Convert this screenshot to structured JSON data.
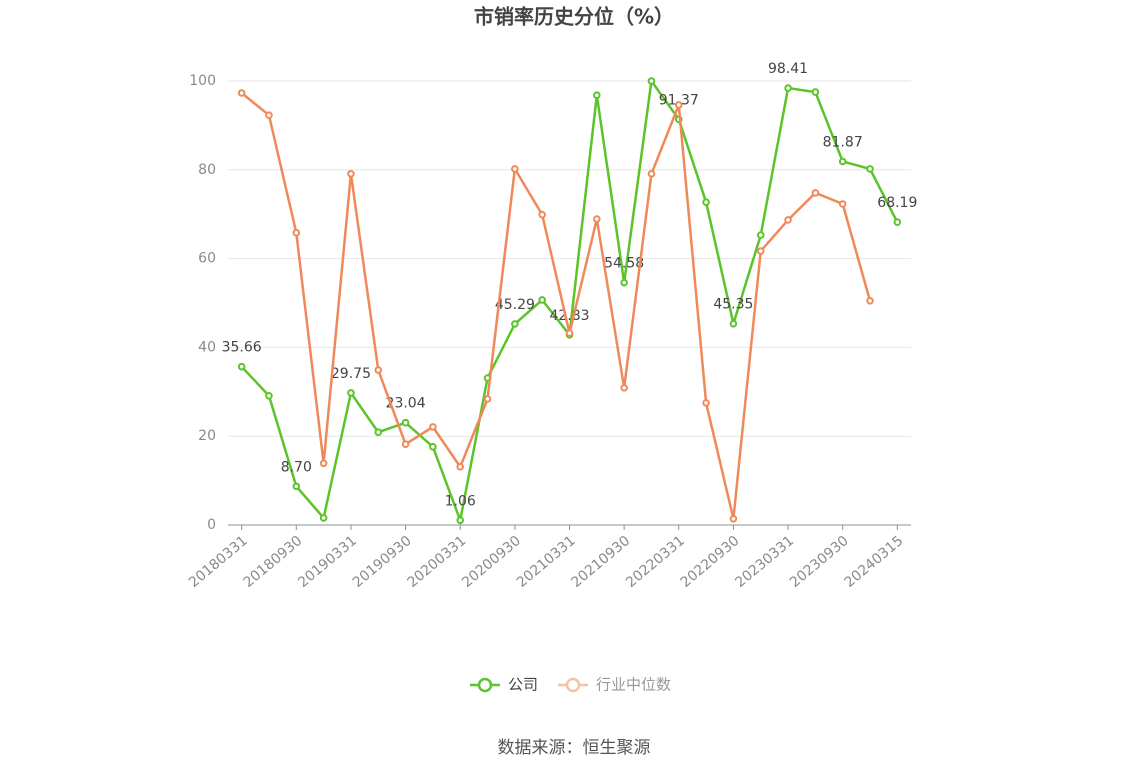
{
  "chart_data": {
    "type": "line",
    "title": "市销率历史分位（%）",
    "source": "数据来源：恒生聚源",
    "categories": [
      "20180331",
      null,
      "20180930",
      null,
      "20190331",
      null,
      "20190930",
      null,
      "20200331",
      null,
      "20200930",
      null,
      "20210331",
      null,
      "20210930",
      null,
      "20220331",
      null,
      "20220930",
      null,
      "20230331",
      null,
      "20230930",
      null,
      "20240315"
    ],
    "series": [
      {
        "name": "公司",
        "color": "#5ac42a",
        "values": [
          35.66,
          29.1,
          8.7,
          1.6,
          29.75,
          20.9,
          23.04,
          17.6,
          1.06,
          33.1,
          45.29,
          50.7,
          42.83,
          96.8,
          54.58,
          100,
          91.37,
          72.7,
          45.35,
          65.3,
          98.41,
          97.5,
          81.87,
          80.2,
          68.19
        ],
        "value_labels": [
          "35.66",
          null,
          "8.70",
          null,
          "29.75",
          null,
          "23.04",
          null,
          "1.06",
          null,
          "45.29",
          null,
          "42.83",
          null,
          "54.58",
          null,
          "91.37",
          null,
          "45.35",
          null,
          "98.41",
          null,
          "81.87",
          null,
          "68.19"
        ]
      },
      {
        "name": "行业中位数",
        "color": "#f0895a",
        "values": [
          97.3,
          92.3,
          65.8,
          13.9,
          79.1,
          34.9,
          18.2,
          22.1,
          13.1,
          28.4,
          80.2,
          69.9,
          43.2,
          68.9,
          30.9,
          79.1,
          94.6,
          27.5,
          1.4,
          61.7,
          68.7,
          74.8,
          72.3,
          50.5,
          null
        ]
      }
    ],
    "ylim": [
      0,
      100
    ],
    "yticks": [
      0,
      20,
      40,
      60,
      80,
      100
    ],
    "grid": true
  }
}
